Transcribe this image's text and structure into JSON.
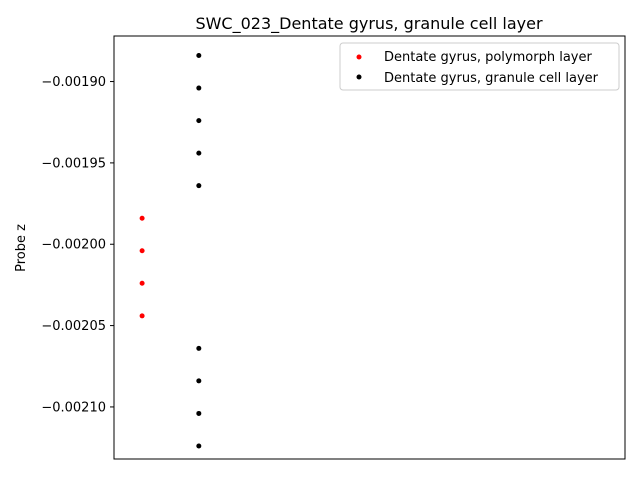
{
  "chart_data": {
    "type": "scatter",
    "title": "SWC_023_Dentate gyrus, granule cell layer",
    "xlabel": "",
    "ylabel": "Probe z",
    "xlim": [
      0,
      1
    ],
    "ylim": [
      -0.002132,
      -0.001872
    ],
    "yticks": [
      -0.0019,
      -0.00195,
      -0.002,
      -0.00205,
      -0.0021
    ],
    "ytick_labels": [
      "−0.00190",
      "−0.00195",
      "−0.00200",
      "−0.00205",
      "−0.00210"
    ],
    "x_ticks_visible": false,
    "grid": false,
    "legend_position": "top-right",
    "series": [
      {
        "name": "Dentate gyrus, polymorph layer",
        "color": "#ff0000",
        "marker": "dot",
        "points": [
          {
            "x": 0.055,
            "y": -0.001984
          },
          {
            "x": 0.055,
            "y": -0.002004
          },
          {
            "x": 0.055,
            "y": -0.002024
          },
          {
            "x": 0.055,
            "y": -0.002044
          }
        ]
      },
      {
        "name": "Dentate gyrus, granule cell layer",
        "color": "#000000",
        "marker": "dot",
        "points": [
          {
            "x": 0.166,
            "y": -0.001884
          },
          {
            "x": 0.166,
            "y": -0.001904
          },
          {
            "x": 0.166,
            "y": -0.001924
          },
          {
            "x": 0.166,
            "y": -0.001944
          },
          {
            "x": 0.166,
            "y": -0.001964
          },
          {
            "x": 0.166,
            "y": -0.002064
          },
          {
            "x": 0.166,
            "y": -0.002084
          },
          {
            "x": 0.166,
            "y": -0.002104
          },
          {
            "x": 0.166,
            "y": -0.002124
          }
        ]
      }
    ]
  }
}
